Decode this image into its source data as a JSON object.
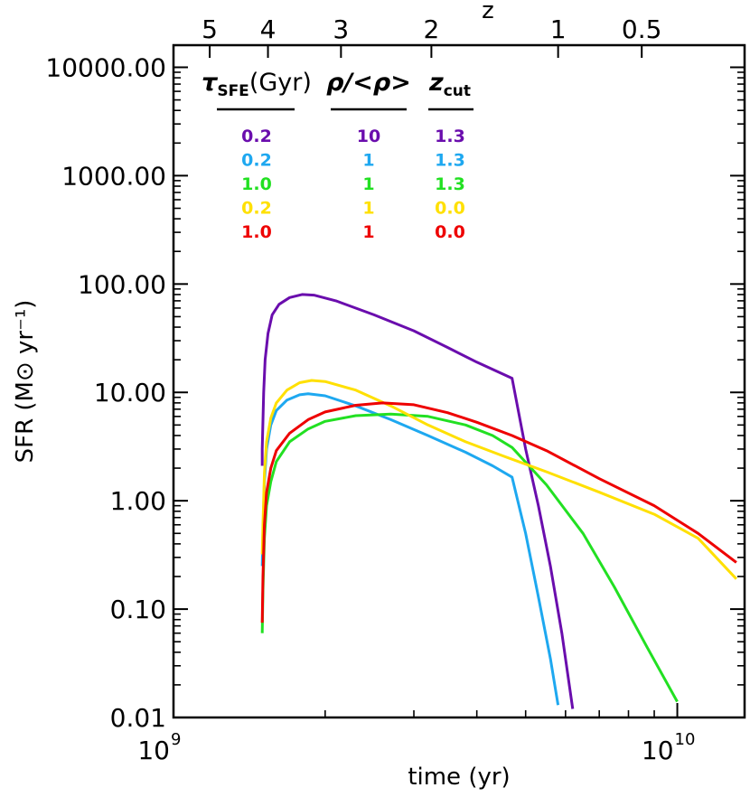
{
  "chart_data": {
    "type": "line",
    "xlabel": "time (yr)",
    "ylabel": "SFR (M⊙ yr⁻¹)",
    "top_axis_label": "z",
    "x_scale": "log",
    "y_scale": "log",
    "xlim": [
      1000000000,
      13600000000
    ],
    "ylim": [
      0.01,
      16000
    ],
    "x_ticks": [
      {
        "value": 1000000000,
        "base": "10",
        "exp": "9"
      },
      {
        "value": 10000000000,
        "base": "10",
        "exp": "10"
      }
    ],
    "y_ticks": [
      {
        "value": 0.01,
        "label": "0.01"
      },
      {
        "value": 0.1,
        "label": "0.10"
      },
      {
        "value": 1,
        "label": "1.00"
      },
      {
        "value": 10,
        "label": "10.00"
      },
      {
        "value": 100,
        "label": "100.00"
      },
      {
        "value": 1000,
        "label": "1000.00"
      },
      {
        "value": 10000,
        "label": "10000.00"
      }
    ],
    "top_ticks": [
      {
        "label": "5",
        "time": 1180000000
      },
      {
        "label": "4",
        "time": 1540000000
      },
      {
        "label": "3",
        "time": 2150000000
      },
      {
        "label": "2",
        "time": 3250000000
      },
      {
        "label": "1",
        "time": 5800000000
      },
      {
        "label": "0.5",
        "time": 8500000000
      }
    ],
    "legend_headers": [
      {
        "sym": "τ",
        "sub": "SFE",
        "rest": "(Gyr)"
      },
      {
        "sym": "ρ/<ρ>",
        "sub": "",
        "rest": ""
      },
      {
        "sym": "z",
        "sub": "cut",
        "rest": ""
      }
    ],
    "legend_rows": [
      {
        "tau": "0.2",
        "rho": "10",
        "zcut": "1.3",
        "color": "#6a0dad"
      },
      {
        "tau": "0.2",
        "rho": "1",
        "zcut": "1.3",
        "color": "#1ea8f0"
      },
      {
        "tau": "1.0",
        "rho": "1",
        "zcut": "1.3",
        "color": "#22e022"
      },
      {
        "tau": "0.2",
        "rho": "1",
        "zcut": "0.0",
        "color": "#ffe000"
      },
      {
        "tau": "1.0",
        "rho": "1",
        "zcut": "0.0",
        "color": "#ee0000"
      }
    ],
    "series": [
      {
        "color": "#6a0dad",
        "points": [
          [
            1500000000,
            2.1
          ],
          [
            1500000000,
            3.0
          ],
          [
            1510000000,
            10
          ],
          [
            1520000000,
            20
          ],
          [
            1540000000,
            35
          ],
          [
            1570000000,
            52
          ],
          [
            1620000000,
            65
          ],
          [
            1700000000,
            75
          ],
          [
            1800000000,
            80
          ],
          [
            1900000000,
            79
          ],
          [
            2100000000,
            70
          ],
          [
            2500000000,
            52
          ],
          [
            3000000000,
            37
          ],
          [
            3500000000,
            26
          ],
          [
            4000000000,
            19
          ],
          [
            4700000000,
            13.5
          ],
          [
            5000000000,
            3.0
          ],
          [
            5300000000,
            0.9
          ],
          [
            5600000000,
            0.25
          ],
          [
            5900000000,
            0.06
          ],
          [
            6200000000,
            0.012
          ]
        ]
      },
      {
        "color": "#1ea8f0",
        "points": [
          [
            1500000000,
            0.25
          ],
          [
            1505000000,
            0.5
          ],
          [
            1515000000,
            1.5
          ],
          [
            1530000000,
            3.0
          ],
          [
            1560000000,
            5.0
          ],
          [
            1600000000,
            6.8
          ],
          [
            1680000000,
            8.5
          ],
          [
            1780000000,
            9.5
          ],
          [
            1850000000,
            9.7
          ],
          [
            2000000000,
            9.3
          ],
          [
            2300000000,
            7.5
          ],
          [
            2700000000,
            5.6
          ],
          [
            3200000000,
            4.0
          ],
          [
            3800000000,
            2.8
          ],
          [
            4300000000,
            2.1
          ],
          [
            4700000000,
            1.65
          ],
          [
            5000000000,
            0.5
          ],
          [
            5300000000,
            0.13
          ],
          [
            5600000000,
            0.035
          ],
          [
            5800000000,
            0.013
          ]
        ]
      },
      {
        "color": "#22e022",
        "points": [
          [
            1500000000,
            0.06
          ],
          [
            1505000000,
            0.15
          ],
          [
            1515000000,
            0.45
          ],
          [
            1530000000,
            0.9
          ],
          [
            1560000000,
            1.5
          ],
          [
            1600000000,
            2.3
          ],
          [
            1700000000,
            3.5
          ],
          [
            1850000000,
            4.6
          ],
          [
            2000000000,
            5.4
          ],
          [
            2300000000,
            6.1
          ],
          [
            2700000000,
            6.3
          ],
          [
            3200000000,
            6.0
          ],
          [
            3800000000,
            5.0
          ],
          [
            4300000000,
            4.0
          ],
          [
            4700000000,
            3.1
          ],
          [
            5500000000,
            1.4
          ],
          [
            6500000000,
            0.5
          ],
          [
            7500000000,
            0.16
          ],
          [
            8700000000,
            0.045
          ],
          [
            10000000000,
            0.014
          ]
        ]
      },
      {
        "color": "#ffe000",
        "points": [
          [
            1500000000,
            0.32
          ],
          [
            1505000000,
            0.6
          ],
          [
            1515000000,
            1.8
          ],
          [
            1530000000,
            3.5
          ],
          [
            1560000000,
            5.8
          ],
          [
            1600000000,
            8.0
          ],
          [
            1680000000,
            10.5
          ],
          [
            1780000000,
            12.3
          ],
          [
            1880000000,
            12.9
          ],
          [
            2000000000,
            12.6
          ],
          [
            2300000000,
            10.5
          ],
          [
            2700000000,
            7.5
          ],
          [
            3200000000,
            5.0
          ],
          [
            3800000000,
            3.5
          ],
          [
            4500000000,
            2.6
          ],
          [
            5500000000,
            1.85
          ],
          [
            7000000000,
            1.2
          ],
          [
            9000000000,
            0.75
          ],
          [
            11000000000,
            0.45
          ],
          [
            13100000000,
            0.19
          ]
        ]
      },
      {
        "color": "#ee0000",
        "points": [
          [
            1500000000,
            0.075
          ],
          [
            1505000000,
            0.2
          ],
          [
            1515000000,
            0.6
          ],
          [
            1530000000,
            1.2
          ],
          [
            1560000000,
            2.0
          ],
          [
            1600000000,
            2.9
          ],
          [
            1700000000,
            4.2
          ],
          [
            1850000000,
            5.6
          ],
          [
            2000000000,
            6.6
          ],
          [
            2300000000,
            7.6
          ],
          [
            2600000000,
            8.0
          ],
          [
            3000000000,
            7.7
          ],
          [
            3500000000,
            6.5
          ],
          [
            4000000000,
            5.3
          ],
          [
            4700000000,
            4.0
          ],
          [
            5500000000,
            2.9
          ],
          [
            7000000000,
            1.6
          ],
          [
            9000000000,
            0.9
          ],
          [
            11000000000,
            0.5
          ],
          [
            13100000000,
            0.27
          ]
        ]
      }
    ]
  }
}
